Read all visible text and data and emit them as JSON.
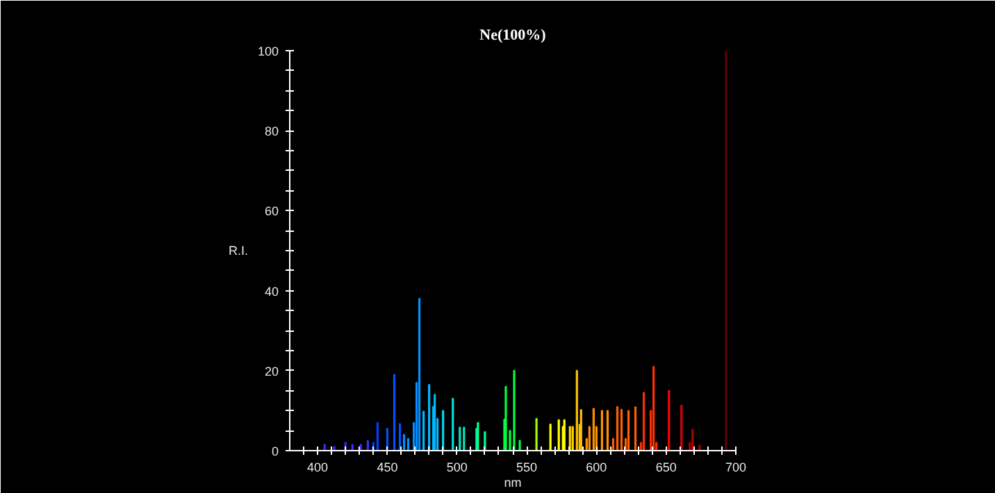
{
  "chart_data": {
    "type": "bar",
    "title": "Ne(100%)",
    "xlabel": "nm",
    "ylabel": "R.I.",
    "x": [
      405,
      412,
      420,
      425,
      431,
      436,
      440,
      443,
      450,
      455,
      459,
      462,
      465,
      469,
      471,
      473,
      476,
      480,
      483,
      484,
      486,
      490,
      497,
      502,
      505,
      514,
      515,
      520,
      534,
      535,
      538,
      541,
      545,
      557,
      567,
      573,
      576,
      577,
      581,
      583,
      586,
      588,
      589,
      593,
      595,
      598,
      600,
      604,
      608,
      612,
      615,
      618,
      621,
      623,
      628,
      632,
      634,
      639,
      641,
      643,
      652,
      661,
      667,
      669,
      674,
      693
    ],
    "values": [
      1.5,
      1,
      2,
      1.5,
      1.5,
      2.5,
      2,
      7,
      5.5,
      19,
      6.7,
      4,
      3,
      7,
      17,
      38,
      9.8,
      16.5,
      11,
      14,
      8,
      10,
      13,
      5.8,
      5.8,
      5.5,
      7,
      4.7,
      7.8,
      16,
      5,
      20,
      2.5,
      8,
      6.6,
      7.7,
      6,
      7.7,
      6,
      6,
      20,
      6.5,
      10.2,
      3,
      6,
      10.5,
      6,
      10,
      10,
      3,
      11,
      10.3,
      3,
      10,
      10.9,
      2,
      14.5,
      10,
      21,
      2,
      15,
      11.3,
      2,
      5.3,
      1.3,
      100
    ],
    "colors": [
      "#3a2aff",
      "#3a2aff",
      "#3a2aff",
      "#3a2aff",
      "#3a2aff",
      "#3a2aff",
      "#0040ff",
      "#0040ff",
      "#0050ff",
      "#0050ff",
      "#0050ff",
      "#0090ff",
      "#0090ff",
      "#0090ff",
      "#0090ff",
      "#0090ff",
      "#00b8ff",
      "#00b8ff",
      "#00b8ff",
      "#00b8ff",
      "#00b8ff",
      "#00d8f0",
      "#00e0e0",
      "#00e8c0",
      "#00e8c0",
      "#00ff90",
      "#00ff90",
      "#00ff90",
      "#00ff40",
      "#00ff40",
      "#00ff40",
      "#00ff40",
      "#00ff40",
      "#a0ff00",
      "#ffff00",
      "#ffff00",
      "#ffff00",
      "#ffff00",
      "#ffd000",
      "#ffd000",
      "#ffc000",
      "#ffc000",
      "#ffc000",
      "#ff9000",
      "#ff9000",
      "#ff9000",
      "#ff9000",
      "#ff9000",
      "#ff9000",
      "#ff6000",
      "#ff6000",
      "#ff6000",
      "#ff6000",
      "#ff6000",
      "#ff6000",
      "#ff3000",
      "#ff3000",
      "#ff3000",
      "#ff3000",
      "#ff3000",
      "#ff0000",
      "#e00000",
      "#b00000",
      "#b00000",
      "#b00000",
      "#600000"
    ],
    "xlim": [
      380,
      700
    ],
    "ylim": [
      0,
      100
    ],
    "xticks": [
      {
        "value": 390,
        "label": null
      },
      400,
      {
        "value": 410,
        "label": null
      },
      {
        "value": 420,
        "label": null
      },
      {
        "value": 430,
        "label": null
      },
      {
        "value": 440,
        "label": null
      },
      450,
      {
        "value": 460,
        "label": null
      },
      {
        "value": 470,
        "label": null
      },
      {
        "value": 480,
        "label": null
      },
      {
        "value": 490,
        "label": null
      },
      500,
      {
        "value": 510,
        "label": null
      },
      {
        "value": 520,
        "label": null
      },
      {
        "value": 530,
        "label": null
      },
      {
        "value": 540,
        "label": null
      },
      550,
      {
        "value": 560,
        "label": null
      },
      {
        "value": 570,
        "label": null
      },
      {
        "value": 580,
        "label": null
      },
      {
        "value": 590,
        "label": null
      },
      600,
      {
        "value": 610,
        "label": null
      },
      {
        "value": 620,
        "label": null
      },
      {
        "value": 630,
        "label": null
      },
      {
        "value": 640,
        "label": null
      },
      650,
      {
        "value": 660,
        "label": null
      },
      {
        "value": 670,
        "label": null
      },
      {
        "value": 680,
        "label": null
      },
      {
        "value": 690,
        "label": null
      },
      700
    ],
    "yticks": [
      0,
      {
        "value": 5,
        "label": null
      },
      {
        "value": 10,
        "label": null
      },
      {
        "value": 15,
        "label": null
      },
      20,
      {
        "value": 25,
        "label": null
      },
      {
        "value": 30,
        "label": null
      },
      {
        "value": 35,
        "label": null
      },
      40,
      {
        "value": 45,
        "label": null
      },
      {
        "value": 50,
        "label": null
      },
      {
        "value": 55,
        "label": null
      },
      60,
      {
        "value": 65,
        "label": null
      },
      {
        "value": 70,
        "label": null
      },
      {
        "value": 75,
        "label": null
      },
      80,
      {
        "value": 85,
        "label": null
      },
      {
        "value": 90,
        "label": null
      },
      {
        "value": 95,
        "label": null
      },
      100
    ],
    "grid": false
  }
}
